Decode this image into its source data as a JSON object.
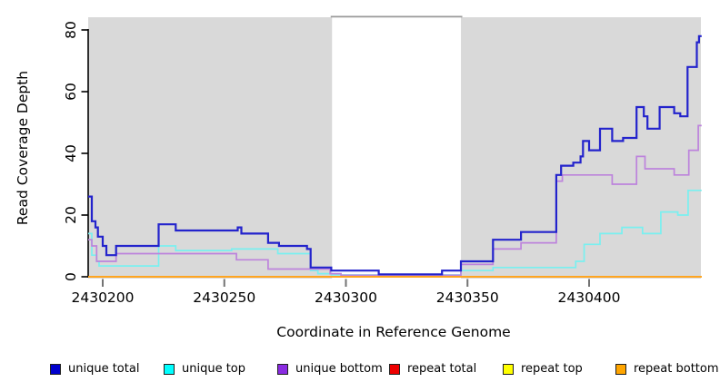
{
  "chart_data": {
    "type": "line",
    "step": true,
    "title": "",
    "xlabel": "Coordinate in Reference Genome",
    "ylabel": "Read Coverage Depth",
    "xlim": [
      2430194,
      2430446
    ],
    "ylim": [
      0,
      80
    ],
    "x_ticks": [
      2430200,
      2430250,
      2430300,
      2430350,
      2430400
    ],
    "y_ticks": [
      0,
      20,
      40,
      60,
      80
    ],
    "grid": false,
    "legend_position": "bottom",
    "panel_background": "#d9d9d9",
    "uncovered_region": {
      "x_start": 2430294.3,
      "x_end": 2430347.3,
      "fill": "#ffffff",
      "border_top": "#999999"
    },
    "series": [
      {
        "name": "unique total",
        "color": "#2323cc",
        "legend_fill": "#0000cd",
        "width": 2.2,
        "points": [
          [
            2430194,
            26
          ],
          [
            2430195.5,
            18
          ],
          [
            2430197,
            16
          ],
          [
            2430198,
            13
          ],
          [
            2430200,
            10
          ],
          [
            2430201.5,
            7
          ],
          [
            2430205.5,
            10
          ],
          [
            2430223,
            17
          ],
          [
            2430230,
            15
          ],
          [
            2430255.5,
            16
          ],
          [
            2430257,
            14
          ],
          [
            2430268,
            11
          ],
          [
            2430272.5,
            10
          ],
          [
            2430284,
            9
          ],
          [
            2430285.5,
            3
          ],
          [
            2430294,
            2
          ],
          [
            2430313.5,
            0.8
          ],
          [
            2430339.5,
            2
          ],
          [
            2430347.3,
            5
          ],
          [
            2430360.5,
            12
          ],
          [
            2430372,
            14.5
          ],
          [
            2430386.5,
            33
          ],
          [
            2430388.5,
            36
          ],
          [
            2430393.5,
            37
          ],
          [
            2430396.5,
            39
          ],
          [
            2430397.5,
            44
          ],
          [
            2430400,
            41
          ],
          [
            2430404.5,
            48
          ],
          [
            2430409.5,
            44
          ],
          [
            2430414,
            45
          ],
          [
            2430419.5,
            55
          ],
          [
            2430422.5,
            52
          ],
          [
            2430424,
            48
          ],
          [
            2430429,
            55
          ],
          [
            2430435,
            53
          ],
          [
            2430437.5,
            52
          ],
          [
            2430440.5,
            68
          ],
          [
            2430444.3,
            76
          ],
          [
            2430445.2,
            78
          ]
        ]
      },
      {
        "name": "unique top",
        "color": "#79f0f0",
        "legend_fill": "#00ffff",
        "width": 1.7,
        "points": [
          [
            2430194,
            14
          ],
          [
            2430195.5,
            7
          ],
          [
            2430197.5,
            5
          ],
          [
            2430198.5,
            3.5
          ],
          [
            2430223,
            10
          ],
          [
            2430230,
            8.5
          ],
          [
            2430253,
            9
          ],
          [
            2430272,
            7.5
          ],
          [
            2430285.5,
            2
          ],
          [
            2430288.5,
            1
          ],
          [
            2430294,
            0.6
          ],
          [
            2430347.3,
            2
          ],
          [
            2430360.5,
            3
          ],
          [
            2430394.5,
            5
          ],
          [
            2430398,
            10.5
          ],
          [
            2430404.5,
            14
          ],
          [
            2430413.5,
            16
          ],
          [
            2430422,
            14
          ],
          [
            2430429.5,
            21
          ],
          [
            2430436.5,
            20
          ],
          [
            2430440.7,
            28
          ]
        ]
      },
      {
        "name": "unique bottom",
        "color": "#bd83dc",
        "legend_fill": "#8a2be2",
        "width": 1.7,
        "points": [
          [
            2430194,
            12
          ],
          [
            2430195.5,
            10
          ],
          [
            2430197.5,
            5
          ],
          [
            2430205.5,
            7.5
          ],
          [
            2430255,
            5.5
          ],
          [
            2430268,
            2.5
          ],
          [
            2430293.5,
            1
          ],
          [
            2430298,
            0.5
          ],
          [
            2430347.3,
            4
          ],
          [
            2430360.5,
            9
          ],
          [
            2430372,
            11
          ],
          [
            2430386.5,
            31
          ],
          [
            2430389,
            33
          ],
          [
            2430409.5,
            30
          ],
          [
            2430419.5,
            39
          ],
          [
            2430423,
            35
          ],
          [
            2430435,
            33
          ],
          [
            2430441,
            41
          ],
          [
            2430444.9,
            49
          ]
        ]
      },
      {
        "name": "repeat total",
        "color": "#ee0000",
        "legend_fill": "#ee0000",
        "width": 1.7,
        "points": [
          [
            2430194,
            0
          ]
        ]
      },
      {
        "name": "repeat top",
        "color": "#ffff00",
        "legend_fill": "#ffff00",
        "width": 1.7,
        "points": [
          [
            2430194,
            0
          ]
        ]
      },
      {
        "name": "repeat bottom",
        "color": "#ffa520",
        "legend_fill": "#ffa500",
        "width": 2.0,
        "points": [
          [
            2430194,
            0
          ]
        ]
      }
    ]
  }
}
